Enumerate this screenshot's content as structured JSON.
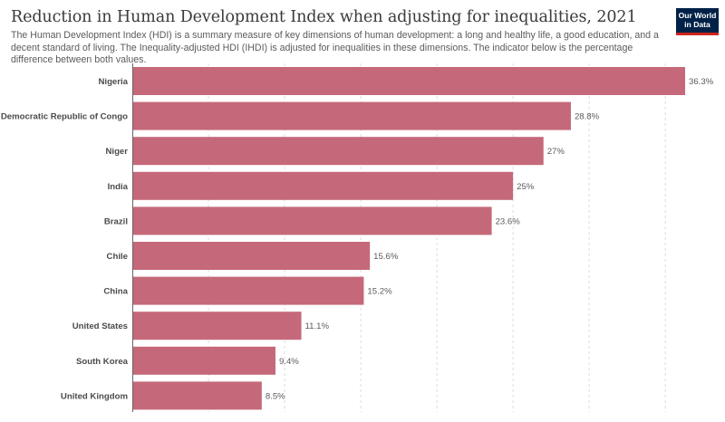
{
  "title": "Reduction in Human Development Index when adjusting for inequalities, 2021",
  "subtitle": "The Human Development Index (HDI) is a summary measure of key dimensions of human development: a long and healthy life, a good education, and a decent standard of living. The Inequality-adjusted HDI (IHDI) is adjusted for inequalities in these dimensions. The indicator below is the percentage difference between both values.",
  "logo": {
    "line1": "Our World",
    "line2": "in Data"
  },
  "colors": {
    "bar": "#c5697a",
    "grid": "#dddddd",
    "axis": "#666666"
  },
  "chart_data": {
    "type": "bar",
    "orientation": "horizontal",
    "categories": [
      "Nigeria",
      "Democratic Republic of Congo",
      "Niger",
      "India",
      "Brazil",
      "Chile",
      "China",
      "United States",
      "South Korea",
      "United Kingdom"
    ],
    "values": [
      36.3,
      28.8,
      27,
      25,
      23.6,
      15.6,
      15.2,
      11.1,
      9.4,
      8.5
    ],
    "value_labels": [
      "36.3%",
      "28.8%",
      "27%",
      "25%",
      "23.6%",
      "15.6%",
      "15.2%",
      "11.1%",
      "9.4%",
      "8.5%"
    ],
    "xlim": [
      0,
      36.3
    ],
    "grid": "vertical dashed"
  }
}
